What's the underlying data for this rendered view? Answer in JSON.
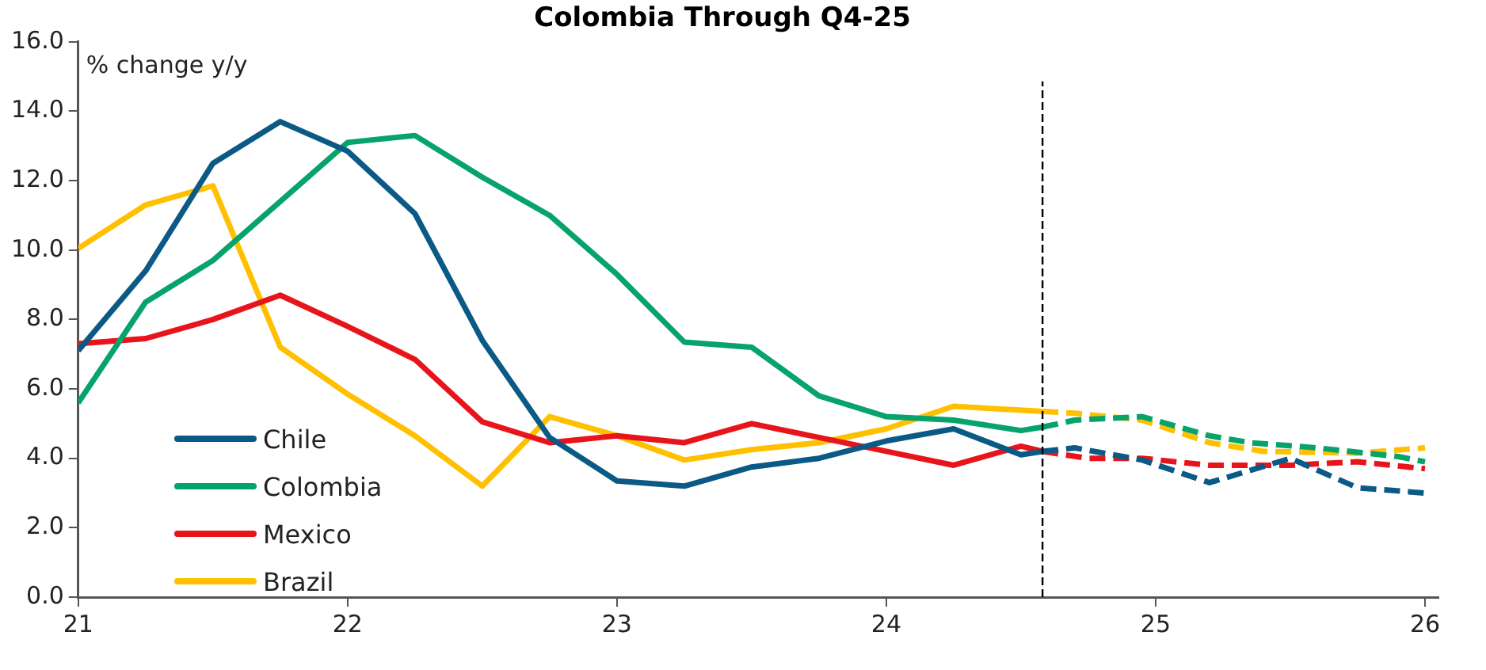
{
  "chart_data": {
    "type": "line",
    "title": "Colombia Through Q4-25",
    "ylabel": "% change y/y",
    "xlim": [
      21,
      26.05
    ],
    "xticks": [
      21,
      22,
      23,
      24,
      25,
      26
    ],
    "ylim": [
      0,
      16
    ],
    "yticks": [
      {
        "value": 0,
        "label": "0.0"
      },
      {
        "value": 2,
        "label": "2.0"
      },
      {
        "value": 4,
        "label": "4.0"
      },
      {
        "value": 6,
        "label": "6.0"
      },
      {
        "value": 8,
        "label": "8.0"
      },
      {
        "value": 10,
        "label": "10.0"
      },
      {
        "value": 12,
        "label": "12.0"
      },
      {
        "value": 14,
        "label": "14.0"
      },
      {
        "value": 16,
        "label": "16.0"
      }
    ],
    "grid": false,
    "legend": "bottom left",
    "line_style": "solid",
    "marker": "none",
    "ref_lines": [
      {
        "axis": "x",
        "value": 24.58,
        "color": "#000000",
        "line_style": "dashed"
      }
    ],
    "series": [
      {
        "name": "Chile",
        "color": "#0b5a86",
        "x": [
          21,
          21.25,
          21.5,
          21.75,
          22,
          22.25,
          22.5,
          22.75,
          23,
          23.25,
          23.5,
          23.75,
          24,
          24.25,
          24.5,
          24.58
        ],
        "values": [
          7.1,
          9.4,
          12.5,
          13.7,
          12.85,
          11.05,
          7.4,
          4.6,
          3.35,
          3.2,
          3.75,
          4.0,
          4.5,
          4.85,
          4.1,
          4.2
        ]
      },
      {
        "name": "Colombia",
        "color": "#06a36a",
        "x": [
          21,
          21.25,
          21.5,
          21.75,
          22,
          22.25,
          22.5,
          22.75,
          23,
          23.25,
          23.5,
          23.75,
          24,
          24.25,
          24.5,
          24.58
        ],
        "values": [
          5.6,
          8.5,
          9.7,
          11.4,
          13.1,
          13.3,
          12.1,
          11.0,
          9.3,
          7.35,
          7.2,
          5.8,
          5.2,
          5.1,
          4.8,
          4.9
        ]
      },
      {
        "name": "Mexico",
        "color": "#e8141c",
        "x": [
          21,
          21.25,
          21.5,
          21.75,
          22,
          22.25,
          22.5,
          22.75,
          23,
          23.25,
          23.5,
          23.75,
          24,
          24.25,
          24.5,
          24.58
        ],
        "values": [
          7.3,
          7.45,
          8.0,
          8.7,
          7.8,
          6.85,
          5.05,
          4.45,
          4.65,
          4.45,
          5.0,
          4.6,
          4.2,
          3.8,
          4.35,
          4.2
        ]
      },
      {
        "name": "Brazil",
        "color": "#ffc000",
        "x": [
          21,
          21.25,
          21.5,
          21.75,
          22,
          22.25,
          22.5,
          22.75,
          23,
          23.25,
          23.5,
          23.75,
          24,
          24.25,
          24.58
        ],
        "values": [
          10.05,
          11.3,
          11.85,
          7.2,
          5.85,
          4.65,
          3.2,
          5.2,
          4.65,
          3.95,
          4.25,
          4.45,
          4.85,
          5.5,
          5.35
        ]
      },
      {
        "color": "#0b5a86",
        "line_style": "dashed",
        "x": [
          24.58,
          24.7,
          24.95,
          25.2,
          25.5,
          25.75,
          26
        ],
        "values": [
          4.2,
          4.3,
          3.95,
          3.3,
          4.0,
          3.15,
          3.0
        ]
      },
      {
        "color": "#06a36a",
        "line_style": "dashed",
        "x": [
          24.58,
          24.7,
          24.95,
          25.2,
          25.35,
          25.6,
          25.9,
          26
        ],
        "values": [
          4.9,
          5.1,
          5.2,
          4.65,
          4.45,
          4.3,
          4.05,
          3.9
        ]
      },
      {
        "color": "#e8141c",
        "line_style": "dashed",
        "x": [
          24.58,
          24.75,
          24.95,
          25.2,
          25.5,
          25.75,
          26
        ],
        "values": [
          4.2,
          4.0,
          4.0,
          3.8,
          3.8,
          3.9,
          3.7
        ]
      },
      {
        "color": "#ffc000",
        "line_style": "dashed",
        "x": [
          24.58,
          24.7,
          24.95,
          25.2,
          25.4,
          25.75,
          26
        ],
        "values": [
          5.35,
          5.3,
          5.1,
          4.45,
          4.2,
          4.15,
          4.3
        ]
      }
    ]
  }
}
